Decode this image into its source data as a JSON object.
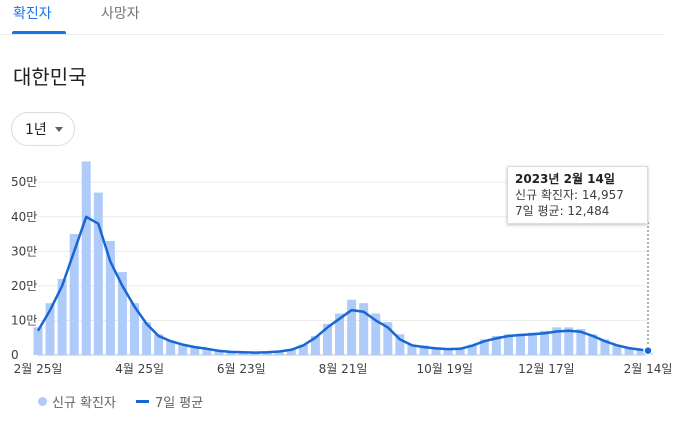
{
  "tabs": [
    {
      "label": "확진자",
      "active": true
    },
    {
      "label": "사망자",
      "active": false
    }
  ],
  "region": "대한민국",
  "range_label": "1년",
  "tooltip": {
    "date": "2023년 2월 14일",
    "new_cases": "신규 확진자: 14,957",
    "avg7": "7일 평균: 12,484"
  },
  "legend": {
    "bars": "신규 확진자",
    "line": "7일 평균"
  },
  "colors": {
    "bars": "#aecbfa",
    "line": "#1967d2",
    "accent": "#1a73e8"
  },
  "chart_data": {
    "type": "bar",
    "title": "",
    "ylim": [
      0,
      570000
    ],
    "yticks": [
      {
        "value": 0,
        "label": "0"
      },
      {
        "value": 100000,
        "label": "10만"
      },
      {
        "value": 200000,
        "label": "20만"
      },
      {
        "value": 300000,
        "label": "30만"
      },
      {
        "value": 400000,
        "label": "40만"
      },
      {
        "value": 500000,
        "label": "50만"
      }
    ],
    "xticks": [
      {
        "x": 0,
        "label": "2월 25일"
      },
      {
        "x": 59,
        "label": "4월 25일"
      },
      {
        "x": 118,
        "label": "6월 23일"
      },
      {
        "x": 177,
        "label": "8월 21일"
      },
      {
        "x": 236,
        "label": "10월 19일"
      },
      {
        "x": 295,
        "label": "12월 17일"
      },
      {
        "x": 354,
        "label": "2월 14일"
      }
    ],
    "x_unit": "days since 2월 25일",
    "series": [
      {
        "name": "신규 확진자",
        "type": "bar",
        "x": [
          0,
          7,
          14,
          21,
          28,
          35,
          42,
          49,
          56,
          63,
          70,
          77,
          84,
          91,
          98,
          105,
          112,
          119,
          126,
          133,
          140,
          147,
          154,
          161,
          168,
          175,
          182,
          189,
          196,
          203,
          210,
          217,
          224,
          231,
          238,
          245,
          252,
          259,
          266,
          273,
          280,
          287,
          294,
          301,
          308,
          315,
          322,
          329,
          336,
          343,
          350,
          354
        ],
        "values": [
          80000,
          150000,
          220000,
          350000,
          560000,
          470000,
          330000,
          240000,
          150000,
          95000,
          60000,
          42000,
          32000,
          25000,
          20000,
          14000,
          10000,
          8000,
          7000,
          8000,
          10000,
          16000,
          30000,
          55000,
          90000,
          120000,
          160000,
          150000,
          120000,
          95000,
          60000,
          30000,
          28000,
          22000,
          18000,
          20000,
          30000,
          45000,
          55000,
          60000,
          62000,
          65000,
          70000,
          80000,
          80000,
          75000,
          60000,
          45000,
          30000,
          22000,
          16000,
          14957
        ]
      },
      {
        "name": "7일 평균",
        "type": "line",
        "x": [
          0,
          7,
          14,
          21,
          28,
          35,
          42,
          49,
          56,
          63,
          70,
          77,
          84,
          91,
          98,
          105,
          112,
          119,
          126,
          133,
          140,
          147,
          154,
          161,
          168,
          175,
          182,
          189,
          196,
          203,
          210,
          217,
          224,
          231,
          238,
          245,
          252,
          259,
          266,
          273,
          280,
          287,
          294,
          301,
          308,
          315,
          322,
          329,
          336,
          343,
          350,
          354
        ],
        "values": [
          70000,
          130000,
          200000,
          300000,
          400000,
          380000,
          270000,
          200000,
          140000,
          90000,
          55000,
          40000,
          30000,
          23000,
          18000,
          12000,
          9000,
          8000,
          7000,
          8000,
          10000,
          15000,
          28000,
          50000,
          80000,
          105000,
          130000,
          125000,
          100000,
          80000,
          45000,
          28000,
          23000,
          19000,
          17000,
          18000,
          27000,
          40000,
          48000,
          55000,
          58000,
          60000,
          63000,
          68000,
          70000,
          67000,
          55000,
          40000,
          28000,
          20000,
          15000,
          12484
        ]
      }
    ]
  }
}
